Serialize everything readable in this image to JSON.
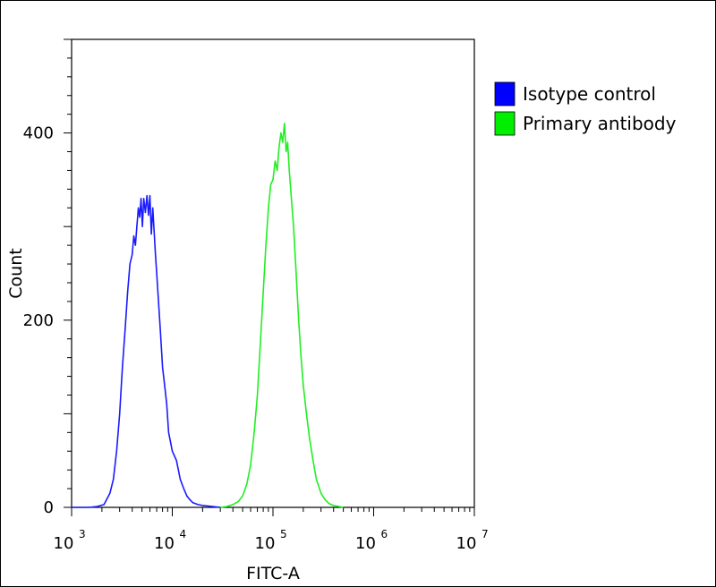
{
  "chart_data": {
    "type": "line",
    "xlabel": "FITC-A",
    "ylabel": "Count",
    "x_scale": "log",
    "xlim": [
      1000,
      10000000
    ],
    "ylim": [
      0,
      500
    ],
    "x_ticks": [
      1000,
      10000,
      100000,
      1000000,
      10000000
    ],
    "x_tick_labels": [
      {
        "base": "10",
        "exp": "3"
      },
      {
        "base": "10",
        "exp": "4"
      },
      {
        "base": "10",
        "exp": "5"
      },
      {
        "base": "10",
        "exp": "6"
      },
      {
        "base": "10",
        "exp": "7"
      }
    ],
    "y_ticks": [
      0,
      200,
      400
    ],
    "y_tick_labels": [
      "0",
      "200",
      "400"
    ],
    "legend_position": "top-right-outside",
    "series": [
      {
        "name": "Isotype control",
        "color": "#1a1aff",
        "legend_color": "#0000ff",
        "points": [
          [
            1000,
            0
          ],
          [
            1500,
            0
          ],
          [
            1800,
            1
          ],
          [
            2100,
            3
          ],
          [
            2400,
            15
          ],
          [
            2600,
            30
          ],
          [
            2800,
            60
          ],
          [
            3000,
            100
          ],
          [
            3200,
            150
          ],
          [
            3400,
            190
          ],
          [
            3600,
            230
          ],
          [
            3800,
            260
          ],
          [
            4000,
            270
          ],
          [
            4150,
            290
          ],
          [
            4300,
            280
          ],
          [
            4450,
            300
          ],
          [
            4600,
            320
          ],
          [
            4750,
            310
          ],
          [
            4900,
            330
          ],
          [
            5050,
            300
          ],
          [
            5200,
            330
          ],
          [
            5400,
            315
          ],
          [
            5600,
            333
          ],
          [
            5800,
            312
          ],
          [
            6000,
            333
          ],
          [
            6200,
            292
          ],
          [
            6400,
            320
          ],
          [
            6600,
            295
          ],
          [
            6800,
            270
          ],
          [
            7000,
            250
          ],
          [
            7300,
            220
          ],
          [
            7600,
            190
          ],
          [
            8000,
            150
          ],
          [
            8400,
            130
          ],
          [
            8800,
            110
          ],
          [
            9200,
            80
          ],
          [
            9600,
            70
          ],
          [
            10000,
            60
          ],
          [
            10500,
            55
          ],
          [
            11000,
            50
          ],
          [
            11500,
            40
          ],
          [
            12000,
            30
          ],
          [
            13000,
            20
          ],
          [
            14000,
            12
          ],
          [
            15000,
            8
          ],
          [
            16000,
            5
          ],
          [
            18000,
            3
          ],
          [
            20000,
            2
          ],
          [
            25000,
            1
          ],
          [
            30000,
            0
          ]
        ]
      },
      {
        "name": "Primary antibody",
        "color": "#22ee22",
        "legend_color": "#00ee00",
        "points": [
          [
            30000,
            0
          ],
          [
            35000,
            1
          ],
          [
            40000,
            3
          ],
          [
            45000,
            6
          ],
          [
            50000,
            12
          ],
          [
            55000,
            25
          ],
          [
            60000,
            45
          ],
          [
            65000,
            80
          ],
          [
            70000,
            120
          ],
          [
            75000,
            175
          ],
          [
            80000,
            230
          ],
          [
            85000,
            280
          ],
          [
            90000,
            320
          ],
          [
            95000,
            345
          ],
          [
            100000,
            350
          ],
          [
            105000,
            370
          ],
          [
            110000,
            360
          ],
          [
            115000,
            385
          ],
          [
            120000,
            400
          ],
          [
            125000,
            390
          ],
          [
            130000,
            410
          ],
          [
            135000,
            380
          ],
          [
            140000,
            390
          ],
          [
            145000,
            360
          ],
          [
            150000,
            340
          ],
          [
            160000,
            300
          ],
          [
            170000,
            250
          ],
          [
            180000,
            200
          ],
          [
            190000,
            160
          ],
          [
            200000,
            130
          ],
          [
            215000,
            100
          ],
          [
            230000,
            75
          ],
          [
            250000,
            50
          ],
          [
            270000,
            30
          ],
          [
            300000,
            15
          ],
          [
            330000,
            8
          ],
          [
            360000,
            4
          ],
          [
            400000,
            2
          ],
          [
            450000,
            1
          ],
          [
            500000,
            0
          ]
        ]
      }
    ]
  }
}
